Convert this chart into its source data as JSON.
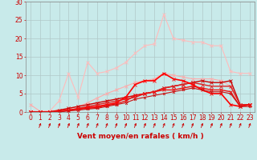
{
  "background_color": "#c8eaea",
  "grid_color": "#b0c8c8",
  "xlabel": "Vent moyen/en rafales ( km/h )",
  "xlabel_color": "#cc0000",
  "xlabel_fontsize": 6.5,
  "tick_color": "#cc0000",
  "tick_fontsize": 5.5,
  "xlim": [
    -0.5,
    23.5
  ],
  "ylim": [
    0,
    30
  ],
  "yticks": [
    0,
    5,
    10,
    15,
    20,
    25,
    30
  ],
  "xticks": [
    0,
    1,
    2,
    3,
    4,
    5,
    6,
    7,
    8,
    9,
    10,
    11,
    12,
    13,
    14,
    15,
    16,
    17,
    18,
    19,
    20,
    21,
    22,
    23
  ],
  "lines": [
    {
      "x": [
        0,
        1,
        2,
        3,
        4,
        5,
        6,
        7,
        8,
        9,
        10,
        11,
        12,
        13,
        14,
        15,
        16,
        17,
        18,
        19,
        20,
        21,
        22,
        23
      ],
      "y": [
        2,
        0.2,
        0.3,
        0.5,
        0.8,
        1.5,
        2.5,
        3.8,
        5,
        6,
        7,
        8,
        8.5,
        9,
        10.5,
        10,
        9.5,
        9,
        9,
        9,
        8.5,
        7,
        2,
        2
      ],
      "color": "#ffaaaa",
      "lw": 0.8,
      "marker": "x",
      "ms": 2.5
    },
    {
      "x": [
        0,
        1,
        2,
        3,
        4,
        5,
        6,
        7,
        8,
        9,
        10,
        11,
        12,
        13,
        14,
        15,
        16,
        17,
        18,
        19,
        20,
        21,
        22,
        23
      ],
      "y": [
        0.3,
        0.1,
        0.2,
        3,
        10.5,
        4,
        13.5,
        10.5,
        11,
        12,
        13.5,
        16,
        18,
        18.5,
        26.5,
        20,
        19.5,
        19,
        19,
        18,
        18,
        11,
        10.5,
        10.5
      ],
      "color": "#ffbbbb",
      "lw": 0.8,
      "marker": "x",
      "ms": 2.5
    },
    {
      "x": [
        0,
        1,
        2,
        3,
        4,
        5,
        6,
        7,
        8,
        9,
        10,
        11,
        12,
        13,
        14,
        15,
        16,
        17,
        18,
        19,
        20,
        21,
        22,
        23
      ],
      "y": [
        0,
        0,
        0,
        0.5,
        1,
        1.5,
        2,
        2.5,
        3,
        3.5,
        4,
        4.5,
        5,
        5.5,
        6.5,
        7,
        7.5,
        8,
        8.5,
        8,
        8,
        8.5,
        2,
        2
      ],
      "color": "#cc0000",
      "lw": 1.0,
      "marker": "x",
      "ms": 2.5
    },
    {
      "x": [
        0,
        1,
        2,
        3,
        4,
        5,
        6,
        7,
        8,
        9,
        10,
        11,
        12,
        13,
        14,
        15,
        16,
        17,
        18,
        19,
        20,
        21,
        22,
        23
      ],
      "y": [
        0,
        0,
        0,
        0.3,
        0.5,
        1,
        1.5,
        2,
        2.5,
        3,
        3.5,
        4,
        5,
        5.5,
        6.5,
        7,
        7.5,
        8,
        7.5,
        7,
        7,
        7,
        2,
        2
      ],
      "color": "#dd2222",
      "lw": 1.0,
      "marker": "x",
      "ms": 2.5
    },
    {
      "x": [
        0,
        1,
        2,
        3,
        4,
        5,
        6,
        7,
        8,
        9,
        10,
        11,
        12,
        13,
        14,
        15,
        16,
        17,
        18,
        19,
        20,
        21,
        22,
        23
      ],
      "y": [
        0,
        0,
        0,
        0.2,
        0.5,
        0.8,
        1.2,
        1.5,
        2,
        2.5,
        4,
        7.5,
        8.5,
        8.5,
        10.5,
        9,
        8.5,
        7.5,
        6,
        5,
        5,
        2,
        1.5,
        2
      ],
      "color": "#ff0000",
      "lw": 1.2,
      "marker": "x",
      "ms": 3.0
    },
    {
      "x": [
        0,
        1,
        2,
        3,
        4,
        5,
        6,
        7,
        8,
        9,
        10,
        11,
        12,
        13,
        14,
        15,
        16,
        17,
        18,
        19,
        20,
        21,
        22,
        23
      ],
      "y": [
        0,
        0,
        0,
        0.2,
        0.4,
        0.8,
        1.0,
        1.2,
        1.8,
        2.2,
        3,
        4.5,
        5,
        5.5,
        6,
        6,
        6.5,
        7,
        6.5,
        6,
        6,
        5.5,
        1.5,
        2
      ],
      "color": "#ee1111",
      "lw": 1.0,
      "marker": "x",
      "ms": 2.5
    },
    {
      "x": [
        0,
        1,
        2,
        3,
        4,
        5,
        6,
        7,
        8,
        9,
        10,
        11,
        12,
        13,
        14,
        15,
        16,
        17,
        18,
        19,
        20,
        21,
        22,
        23
      ],
      "y": [
        0,
        0,
        0,
        0,
        0.3,
        0.5,
        0.8,
        1.0,
        1.5,
        2.0,
        2.5,
        3.5,
        4,
        4.5,
        5,
        5.5,
        6,
        6.5,
        6,
        5.5,
        5.5,
        5,
        1.5,
        1.5
      ],
      "color": "#cc1111",
      "lw": 0.8,
      "marker": "x",
      "ms": 2.0
    }
  ]
}
